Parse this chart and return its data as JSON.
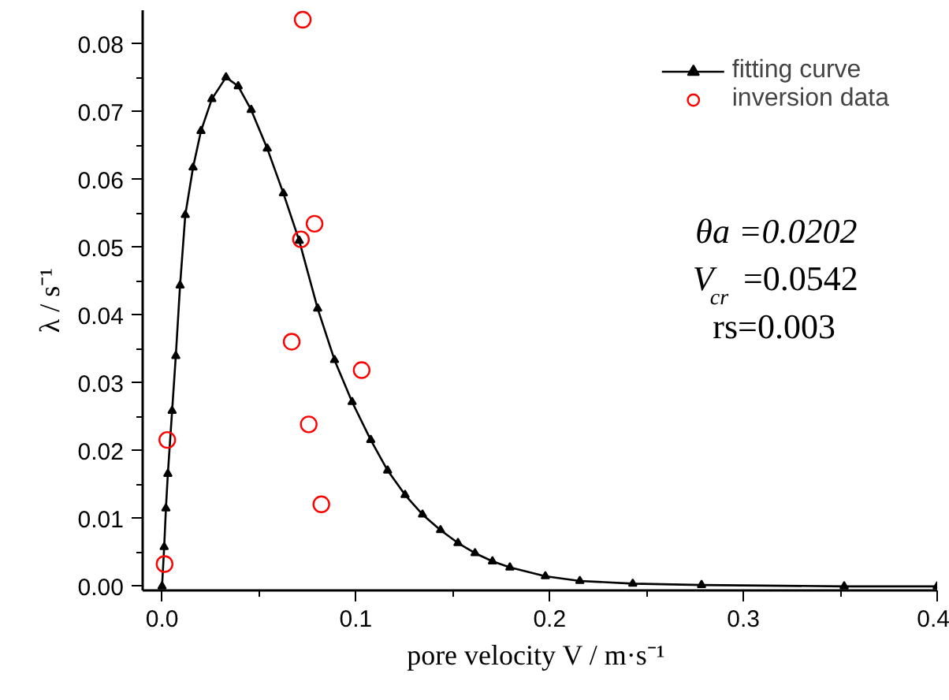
{
  "chart_data": {
    "type": "line",
    "xlabel": "pore velocity  V / m·s⁻¹",
    "ylabel": "λ / s⁻¹",
    "xlim": [
      -0.01,
      0.4
    ],
    "ylim": [
      -0.0006,
      0.085
    ],
    "xticks": [
      {
        "value": 0,
        "label": "0.0"
      },
      0.1,
      0.2,
      0.3,
      0.4
    ],
    "yticks": [
      {
        "value": 0,
        "label": "0.00"
      },
      0.01,
      0.02,
      0.03,
      0.04,
      0.05,
      0.06,
      0.07,
      0.08
    ],
    "legend": "top right",
    "grid": false,
    "annotations": [
      "θa =0.0202",
      "V$_{cr}$ =0.0542",
      "rs=0.003"
    ],
    "series": [
      {
        "name": "fitting curve",
        "color": "#000000",
        "marker": "triangle",
        "line_style": "solid",
        "x": [
          0,
          0.0011,
          0.002,
          0.003,
          0.0052,
          0.0071,
          0.0093,
          0.012,
          0.016,
          0.0201,
          0.0257,
          0.033,
          0.0393,
          0.046,
          0.0543,
          0.0626,
          0.0708,
          0.0803,
          0.089,
          0.0981,
          0.1077,
          0.1164,
          0.1254,
          0.1344,
          0.1437,
          0.1527,
          0.1615,
          0.1705,
          0.1795,
          0.1978,
          0.2156,
          0.2429,
          0.2784,
          0.352,
          0.4
        ],
        "values": [
          0,
          0.0058,
          0.0115,
          0.0166,
          0.0259,
          0.034,
          0.0444,
          0.0548,
          0.0618,
          0.0672,
          0.0719,
          0.0751,
          0.0738,
          0.0703,
          0.0646,
          0.058,
          0.051,
          0.041,
          0.0334,
          0.0272,
          0.0216,
          0.0171,
          0.0135,
          0.0106,
          0.0083,
          0.0064,
          0.0049,
          0.0037,
          0.0028,
          0.0015,
          0.0008,
          0.0004,
          0.0002,
          0,
          0
        ]
      },
      {
        "name": "inversion data",
        "type": "scatter",
        "color": "#ff0000",
        "marker": "circle",
        "x": [
          0.0013,
          0.0027,
          0.0726,
          0.0717,
          0.0787,
          0.0669,
          0.103,
          0.0757,
          0.0822
        ],
        "values": [
          0.0033,
          0.0216,
          0.0836,
          0.0512,
          0.0535,
          0.0361,
          0.0319,
          0.0239,
          0.0121
        ]
      }
    ]
  }
}
